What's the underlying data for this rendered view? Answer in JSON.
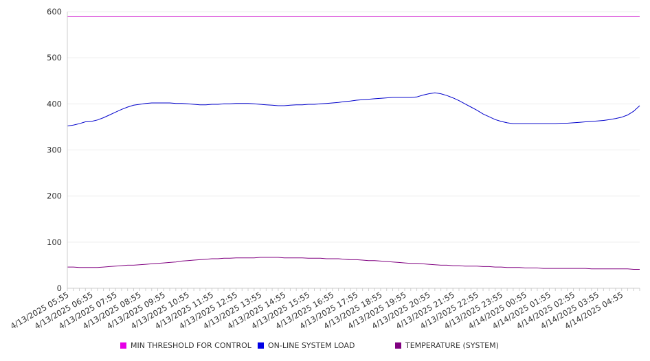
{
  "chart_data": {
    "type": "line",
    "title": "",
    "xlabel": "",
    "ylabel": "",
    "ylim": [
      0,
      600
    ],
    "yticks": [
      0,
      100,
      200,
      300,
      400,
      500,
      600
    ],
    "grid": "horizontal",
    "legend_position": "bottom",
    "x_tick_labels": [
      "4/13/2025 05:55",
      "4/13/2025 06:55",
      "4/13/2025 07:55",
      "4/13/2025 08:55",
      "4/13/2025 09:55",
      "4/13/2025 10:55",
      "4/13/2025 11:55",
      "4/13/2025 12:55",
      "4/13/2025 13:55",
      "4/13/2025 14:55",
      "4/13/2025 15:55",
      "4/13/2025 16:55",
      "4/13/2025 17:55",
      "4/13/2025 18:55",
      "4/13/2025 19:55",
      "4/13/2025 20:55",
      "4/13/2025 21:55",
      "4/13/2025 22:55",
      "4/13/2025 23:55",
      "4/14/2025 00:55",
      "4/14/2025 01:55",
      "4/14/2025 02:55",
      "4/14/2025 03:55",
      "4/14/2025 04:55"
    ],
    "x_start": "4/13/2025 05:55",
    "x_end": "4/14/2025 05:40",
    "sample_interval_min": 15,
    "series": [
      {
        "name": "MIN THRESHOLD FOR CONTROL",
        "color": "#cc00cc",
        "values": [
          589,
          589,
          589,
          589,
          589,
          589,
          589,
          589,
          589,
          589,
          589,
          589,
          589,
          589,
          589,
          589,
          589,
          589,
          589,
          589,
          589,
          589,
          589,
          589,
          589,
          589,
          589,
          589,
          589,
          589,
          589,
          589,
          589,
          589,
          589,
          589,
          589,
          589,
          589,
          589,
          589,
          589,
          589,
          589,
          589,
          589,
          589,
          589,
          589,
          589,
          589,
          589,
          589,
          589,
          589,
          589,
          589,
          589,
          589,
          589,
          589,
          589,
          589,
          589,
          589,
          589,
          589,
          589,
          589,
          589,
          589,
          589,
          589,
          589,
          589,
          589,
          589,
          589,
          589,
          589,
          589,
          589,
          589,
          589,
          589,
          589,
          589,
          589,
          589,
          589,
          589,
          589,
          589,
          589,
          589,
          589
        ]
      },
      {
        "name": "ON-LINE SYSTEM LOAD",
        "color": "#0000cc",
        "values": [
          352,
          354,
          357,
          361,
          362,
          365,
          370,
          376,
          382,
          388,
          393,
          397,
          399,
          401,
          402,
          402,
          402,
          402,
          401,
          401,
          400,
          399,
          398,
          398,
          399,
          399,
          400,
          400,
          401,
          401,
          401,
          400,
          399,
          398,
          397,
          396,
          396,
          397,
          398,
          398,
          399,
          399,
          400,
          401,
          402,
          403,
          405,
          406,
          408,
          409,
          410,
          411,
          412,
          413,
          414,
          414,
          414,
          414,
          415,
          419,
          422,
          424,
          422,
          418,
          413,
          407,
          400,
          393,
          386,
          378,
          372,
          366,
          362,
          359,
          357,
          357,
          357,
          357,
          357,
          357,
          357,
          357,
          358,
          358,
          359,
          360,
          361,
          362,
          363,
          364,
          366,
          368,
          371,
          376,
          384,
          396
        ]
      },
      {
        "name": "TEMPERATURE (SYSTEM)",
        "color": "#800080",
        "values": [
          46,
          46,
          45,
          45,
          45,
          45,
          46,
          47,
          48,
          49,
          50,
          50,
          51,
          52,
          53,
          54,
          55,
          56,
          57,
          59,
          60,
          61,
          62,
          63,
          64,
          64,
          65,
          65,
          66,
          66,
          66,
          66,
          67,
          67,
          67,
          67,
          66,
          66,
          66,
          66,
          65,
          65,
          65,
          64,
          64,
          64,
          63,
          62,
          62,
          61,
          60,
          60,
          59,
          58,
          57,
          56,
          55,
          54,
          54,
          53,
          52,
          51,
          50,
          50,
          49,
          49,
          48,
          48,
          48,
          47,
          47,
          46,
          46,
          45,
          45,
          45,
          44,
          44,
          44,
          43,
          43,
          43,
          43,
          43,
          43,
          43,
          43,
          42,
          42,
          42,
          42,
          42,
          42,
          42,
          41,
          41
        ]
      }
    ]
  }
}
